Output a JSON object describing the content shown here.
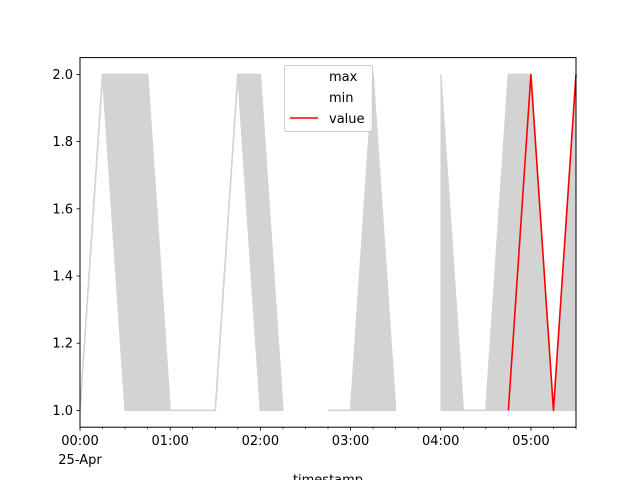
{
  "chart_data": {
    "type": "line",
    "title": "",
    "xlabel": "timestamp",
    "ylabel": "",
    "xlim_minutes": [
      0,
      330
    ],
    "ylim": [
      0.95,
      2.05
    ],
    "grid": false,
    "legend_placement": "upper center",
    "x_tick_labels": [
      {
        "minute": 0,
        "label": "00:00",
        "sublabel": "25-Apr"
      },
      {
        "minute": 60,
        "label": "01:00"
      },
      {
        "minute": 120,
        "label": "02:00"
      },
      {
        "minute": 180,
        "label": "03:00"
      },
      {
        "minute": 240,
        "label": "04:00"
      },
      {
        "minute": 300,
        "label": "05:00"
      }
    ],
    "y_ticks": [
      1.0,
      1.2,
      1.4,
      1.6,
      1.8,
      2.0
    ],
    "x_timestamps": [
      "00:00",
      "00:15",
      "00:30",
      "00:45",
      "01:00",
      "01:15",
      "01:30",
      "01:45",
      "02:00",
      "02:15",
      "02:30",
      "02:45",
      "03:00",
      "03:15",
      "03:30",
      "03:45",
      "04:00",
      "04:15",
      "04:30",
      "04:45",
      "05:00",
      "05:15",
      "05:30"
    ],
    "series": [
      {
        "name": "max",
        "color": "#d3d3d3",
        "values": [
          1,
          2,
          2,
          2,
          1,
          1,
          1,
          2,
          2,
          1,
          null,
          1,
          1,
          2,
          1,
          null,
          2,
          1,
          1,
          2,
          2,
          1,
          2
        ]
      },
      {
        "name": "min",
        "color": "#d3d3d3",
        "values": [
          1,
          2,
          1,
          1,
          1,
          1,
          1,
          2,
          1,
          1,
          null,
          1,
          1,
          1,
          1,
          null,
          1,
          1,
          1,
          1,
          1,
          1,
          1
        ]
      },
      {
        "name": "value",
        "color": "#ff0000",
        "values": [
          null,
          null,
          null,
          null,
          null,
          null,
          null,
          null,
          null,
          null,
          null,
          null,
          null,
          null,
          null,
          null,
          null,
          null,
          null,
          1,
          2,
          1,
          2
        ]
      }
    ],
    "fill_between": {
      "upper": "max",
      "lower": "min",
      "color": "#d3d3d3"
    }
  }
}
